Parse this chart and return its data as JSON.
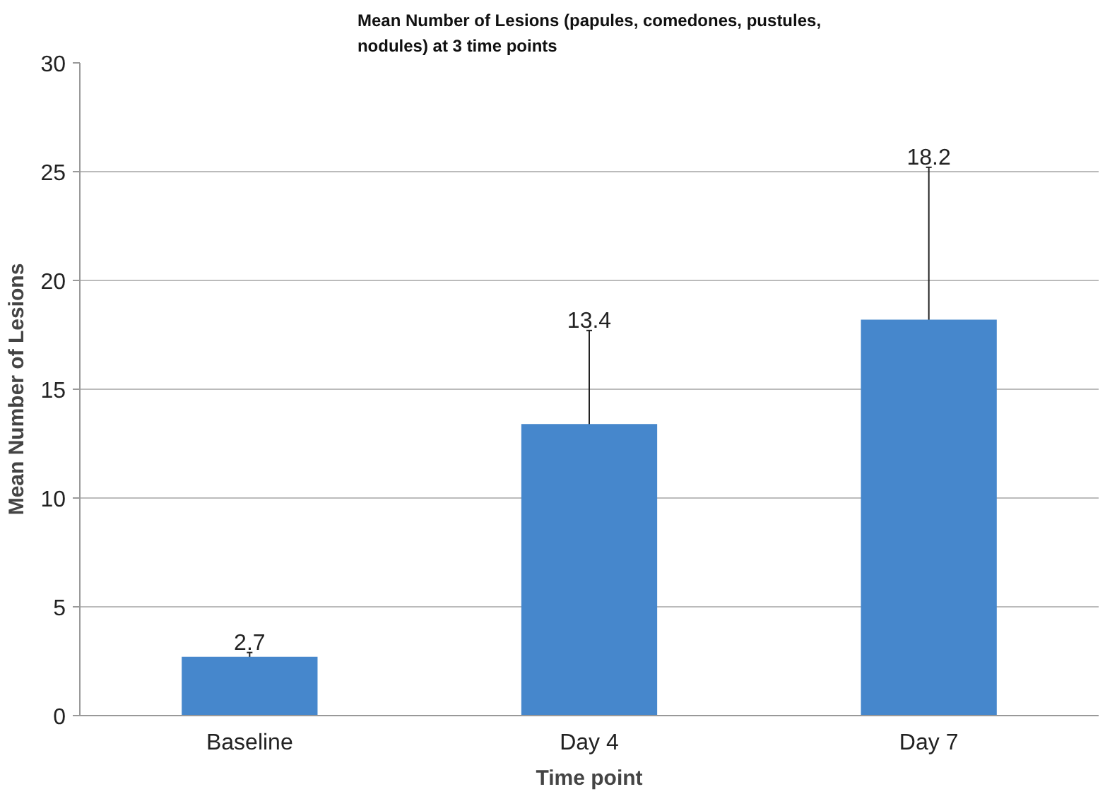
{
  "chart_data": {
    "type": "bar",
    "title": "Mean Number of Lesions (papules, comedones, pustules,\nnodules) at 3 time points",
    "xlabel": "Time point",
    "ylabel": "Mean Number of Lesions",
    "categories": [
      "Baseline",
      "Day 4",
      "Day 7"
    ],
    "values": [
      2.7,
      13.4,
      18.2
    ],
    "color": "#4687cc",
    "errors": [
      0.2,
      4.3,
      7.0
    ],
    "annotations": [
      {
        "text": "2.7",
        "x": "Baseline",
        "y": 2.9
      },
      {
        "text": "13.4",
        "x": "Day 4",
        "y": 17.7
      },
      {
        "text": "18.2",
        "x": "Day 7",
        "y": 25.2
      }
    ],
    "ylim": [
      0,
      30
    ],
    "yticks": [
      0,
      5,
      10,
      15,
      20,
      25,
      30
    ],
    "grid": "y"
  }
}
